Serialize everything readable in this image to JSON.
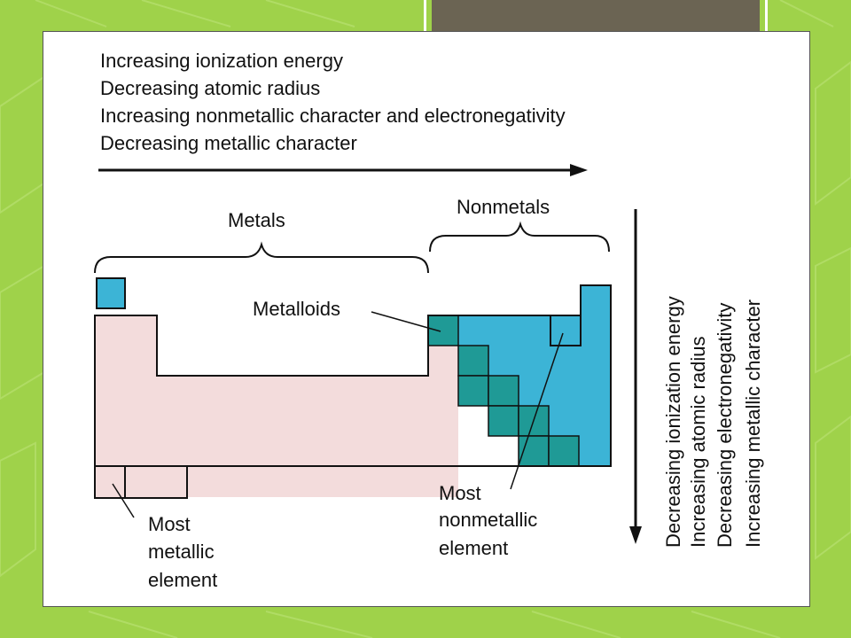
{
  "slide": {
    "colors": {
      "background": "#9fd24a",
      "tab": "#6b6453",
      "metal_fill": "#f3dcdc",
      "nonmetal_fill": "#3cb4d6",
      "metalloid_fill": "#1f9a96"
    }
  },
  "diagram": {
    "horizontal_trends": [
      "Increasing ionization energy",
      "Decreasing atomic radius",
      "Increasing nonmetallic character and electronegativity",
      "Decreasing metallic character"
    ],
    "vertical_trends": [
      "Decreasing ionization energy",
      "Increasing atomic radius",
      "Decreasing electronegativity",
      "Increasing metallic character"
    ],
    "metals_label": "Metals",
    "nonmetals_label": "Nonmetals",
    "metalloids_label": "Metalloids",
    "most_nonmetallic_label": [
      "Most",
      "nonmetallic",
      "element"
    ],
    "most_metallic_label": [
      "Most",
      "metallic",
      "element"
    ]
  }
}
